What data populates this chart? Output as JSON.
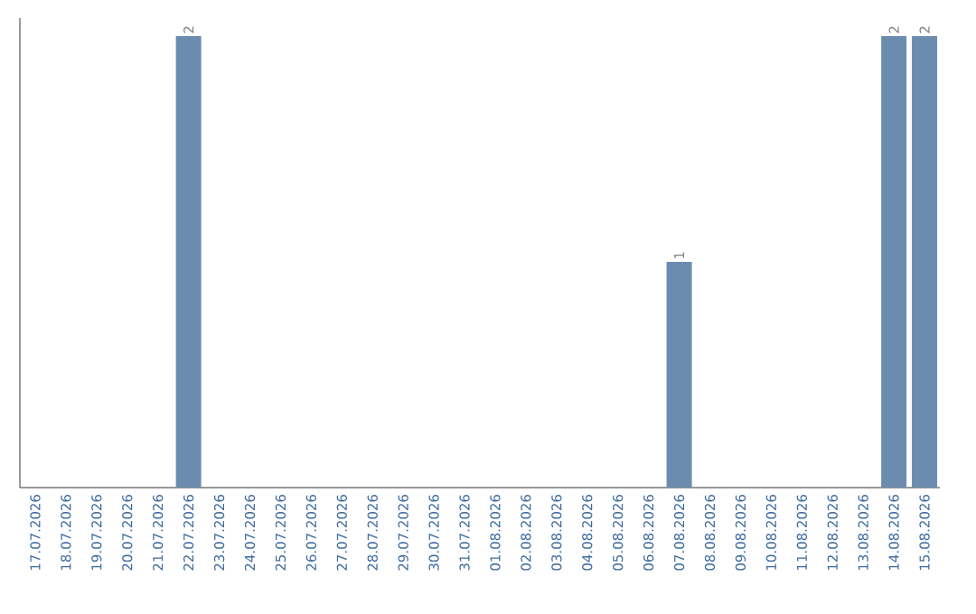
{
  "chart_data": {
    "type": "bar",
    "categories": [
      "17.07.2026",
      "18.07.2026",
      "19.07.2026",
      "20.07.2026",
      "21.07.2026",
      "22.07.2026",
      "23.07.2026",
      "24.07.2026",
      "25.07.2026",
      "26.07.2026",
      "27.07.2026",
      "28.07.2026",
      "29.07.2026",
      "30.07.2026",
      "31.07.2026",
      "01.08.2026",
      "02.08.2026",
      "03.08.2026",
      "04.08.2026",
      "05.08.2026",
      "06.08.2026",
      "07.08.2026",
      "08.08.2026",
      "09.08.2026",
      "10.08.2026",
      "11.08.2026",
      "12.08.2026",
      "13.08.2026",
      "14.08.2026",
      "15.08.2026"
    ],
    "values": [
      0,
      0,
      0,
      0,
      0,
      2,
      0,
      0,
      0,
      0,
      0,
      0,
      0,
      0,
      0,
      0,
      0,
      0,
      0,
      0,
      0,
      1,
      0,
      0,
      0,
      0,
      0,
      0,
      2,
      2
    ],
    "value_labels": [
      null,
      null,
      null,
      null,
      null,
      "2",
      null,
      null,
      null,
      null,
      null,
      null,
      null,
      null,
      null,
      null,
      null,
      null,
      null,
      null,
      null,
      "1",
      null,
      null,
      null,
      null,
      null,
      null,
      "2",
      "2"
    ],
    "color": "#6b8cae"
  }
}
